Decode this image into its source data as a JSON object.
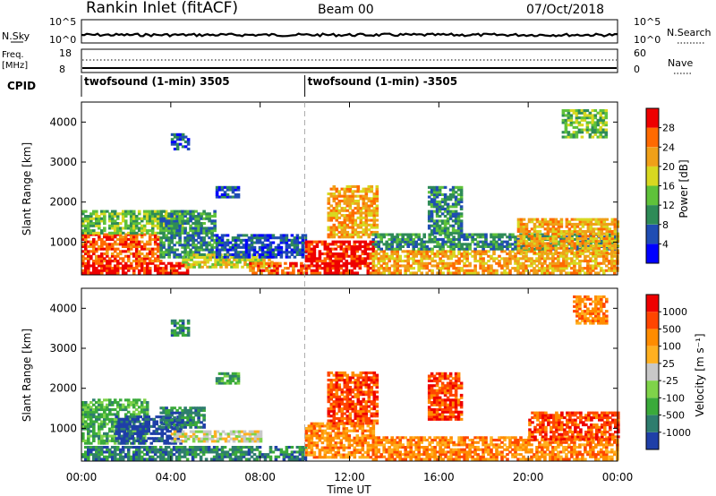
{
  "header": {
    "station": "Rankin Inlet (fitACF)",
    "beam": "Beam 00",
    "date": "07/Oct/2018"
  },
  "strips": {
    "nsky_label": "N.Sky",
    "nsky_ticks": [
      "10^5",
      "10^0"
    ],
    "nsearch_label": "N.Search",
    "nsearch_ticks": [
      "10^5",
      "10^0"
    ],
    "freq_label": "Freq.",
    "freq_unit": "[MHz]",
    "freq_ticks": [
      "18",
      "8"
    ],
    "nave_label": "Nave",
    "nave_ticks": [
      "60",
      "0"
    ],
    "cpid_label": "CPID",
    "cpid_segments": [
      {
        "label": "twofsound (1-min) 3505",
        "start_h": 0,
        "end_h": 10
      },
      {
        "label": "twofsound (1-min) -3505",
        "start_h": 10,
        "end_h": 24
      }
    ]
  },
  "chart_data": [
    {
      "type": "heatmap",
      "title": "Power",
      "ylabel": "Slant Range [km]",
      "y_ticks": [
        "1000",
        "2000",
        "3000",
        "4000"
      ],
      "ylim": [
        180,
        4500
      ],
      "xlim_hours": [
        0,
        24
      ],
      "colorbar": {
        "label": "Power [dB]",
        "ticks": [
          "4",
          "8",
          "12",
          "16",
          "20",
          "24",
          "28"
        ],
        "colors": [
          "#0000ff",
          "#1f4db3",
          "#2e8b57",
          "#5fc23a",
          "#d8d820",
          "#f0a018",
          "#ff6a00",
          "#ee0000"
        ]
      },
      "echo_regions": [
        {
          "t0": 0.0,
          "t1": 4.7,
          "r0": 200,
          "r1": 500,
          "level": 7
        },
        {
          "t0": 0.0,
          "t1": 3.5,
          "r0": 500,
          "r1": 1200,
          "level": 6
        },
        {
          "t0": 0.0,
          "t1": 4.5,
          "r0": 1200,
          "r1": 1800,
          "level": 3
        },
        {
          "t0": 3.5,
          "t1": 6.0,
          "r0": 600,
          "r1": 1800,
          "level": 2
        },
        {
          "t0": 4.5,
          "t1": 8.5,
          "r0": 350,
          "r1": 700,
          "level": 4
        },
        {
          "t0": 6.0,
          "t1": 10.0,
          "r0": 600,
          "r1": 1200,
          "level": 1
        },
        {
          "t0": 7.5,
          "t1": 10.0,
          "r0": 200,
          "r1": 500,
          "level": 6
        },
        {
          "t0": 10.0,
          "t1": 13.0,
          "r0": 200,
          "r1": 1000,
          "level": 7
        },
        {
          "t0": 11.0,
          "t1": 13.2,
          "r0": 1100,
          "r1": 2400,
          "level": 5
        },
        {
          "t0": 13.0,
          "t1": 24.0,
          "r0": 200,
          "r1": 800,
          "level": 5
        },
        {
          "t0": 13.0,
          "t1": 24.0,
          "r0": 800,
          "r1": 1200,
          "level": 2
        },
        {
          "t0": 15.5,
          "t1": 17.0,
          "r0": 1200,
          "r1": 2400,
          "level": 2
        },
        {
          "t0": 19.5,
          "t1": 24.0,
          "r0": 700,
          "r1": 1600,
          "level": 5
        },
        {
          "t0": 4.0,
          "t1": 4.8,
          "r0": 3300,
          "r1": 3700,
          "level": 1
        },
        {
          "t0": 6.0,
          "t1": 7.0,
          "r0": 2100,
          "r1": 2400,
          "level": 1
        },
        {
          "t0": 21.5,
          "t1": 23.5,
          "r0": 3600,
          "r1": 4300,
          "level": 3
        }
      ]
    },
    {
      "type": "heatmap",
      "title": "Velocity",
      "ylabel": "Slant Range [km]",
      "y_ticks": [
        "1000",
        "2000",
        "3000",
        "4000"
      ],
      "ylim": [
        180,
        4500
      ],
      "xlabel": "Time UT",
      "x_ticks": [
        "00:00",
        "04:00",
        "08:00",
        "12:00",
        "16:00",
        "20:00",
        "00:00"
      ],
      "xlim_hours": [
        0,
        24
      ],
      "colorbar": {
        "label": "Velocity [m s⁻¹]",
        "ticks": [
          "1000",
          "500",
          "100",
          "25",
          "-25",
          "-100",
          "-500",
          "-1000"
        ],
        "colors": [
          "#1f3fa8",
          "#2e7d6e",
          "#3aaa3a",
          "#7fd34a",
          "#c8c8c8",
          "#ffb020",
          "#ff8c00",
          "#ff4500",
          "#ee0000"
        ]
      },
      "echo_regions": [
        {
          "t0": 0.0,
          "t1": 3.0,
          "r0": 600,
          "r1": 1700,
          "level": 2
        },
        {
          "t0": 1.5,
          "t1": 4.5,
          "r0": 600,
          "r1": 1300,
          "level": 0
        },
        {
          "t0": 4.0,
          "t1": 8.0,
          "r0": 650,
          "r1": 950,
          "level": 4
        },
        {
          "t0": 0.0,
          "t1": 10.0,
          "r0": 200,
          "r1": 550,
          "level": 1
        },
        {
          "t0": 3.5,
          "t1": 5.5,
          "r0": 1000,
          "r1": 1500,
          "level": 1
        },
        {
          "t0": 10.0,
          "t1": 13.0,
          "r0": 250,
          "r1": 1100,
          "level": 6
        },
        {
          "t0": 11.0,
          "t1": 13.2,
          "r0": 1100,
          "r1": 2400,
          "level": 7
        },
        {
          "t0": 13.0,
          "t1": 24.0,
          "r0": 200,
          "r1": 800,
          "level": 6
        },
        {
          "t0": 15.5,
          "t1": 17.0,
          "r0": 1200,
          "r1": 2400,
          "level": 7
        },
        {
          "t0": 20.0,
          "t1": 24.0,
          "r0": 700,
          "r1": 1400,
          "level": 7
        },
        {
          "t0": 4.0,
          "t1": 4.8,
          "r0": 3300,
          "r1": 3700,
          "level": 1
        },
        {
          "t0": 6.0,
          "t1": 7.0,
          "r0": 2100,
          "r1": 2400,
          "level": 2
        },
        {
          "t0": 22.0,
          "t1": 23.5,
          "r0": 3600,
          "r1": 4300,
          "level": 6
        }
      ]
    }
  ]
}
